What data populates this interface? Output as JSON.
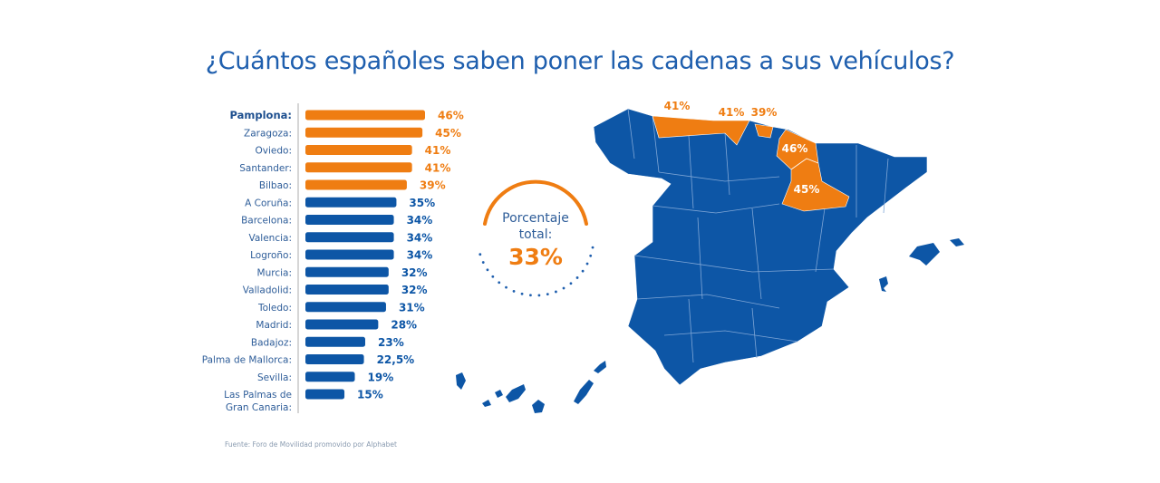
{
  "title": "¿Cuántos españoles saben poner las cadenas a sus vehículos?",
  "source": "Fuente: Foro de Movilidad promovido por Alphabet",
  "colors": {
    "highlight": "#ef7d12",
    "base": "#0d56a6",
    "text": "#1f5fae"
  },
  "total": {
    "label_line1": "Porcentaje",
    "label_line2": "total:",
    "value": "33%"
  },
  "map": {
    "labels": [
      {
        "region": "Oviedo",
        "text": "41%"
      },
      {
        "region": "Santander",
        "text": "41%"
      },
      {
        "region": "Bilbao",
        "text": "39%"
      },
      {
        "region": "Pamplona",
        "text": "46%"
      },
      {
        "region": "Zaragoza",
        "text": "45%"
      }
    ]
  },
  "chart_data": {
    "type": "bar",
    "orientation": "horizontal",
    "categories": [
      "Pamplona:",
      "Zaragoza:",
      "Oviedo:",
      "Santander:",
      "Bilbao:",
      "A Coruña:",
      "Barcelona:",
      "Valencia:",
      "Logroño:",
      "Murcia:",
      "Valladolid:",
      "Toledo:",
      "Madrid:",
      "Badajoz:",
      "Palma de Mallorca:",
      "Sevilla:",
      "Las Palmas de Gran Canaria:"
    ],
    "values": [
      46,
      45,
      41,
      41,
      39,
      35,
      34,
      34,
      34,
      32,
      32,
      31,
      28,
      23,
      22.5,
      19,
      15
    ],
    "value_labels": [
      "46%",
      "45%",
      "41%",
      "41%",
      "39%",
      "35%",
      "34%",
      "34%",
      "34%",
      "32%",
      "32%",
      "31%",
      "28%",
      "23%",
      "22,5%",
      "19%",
      "15%"
    ],
    "highlighted": [
      true,
      true,
      true,
      true,
      true,
      false,
      false,
      false,
      false,
      false,
      false,
      false,
      false,
      false,
      false,
      false,
      false
    ],
    "unit": "%"
  }
}
